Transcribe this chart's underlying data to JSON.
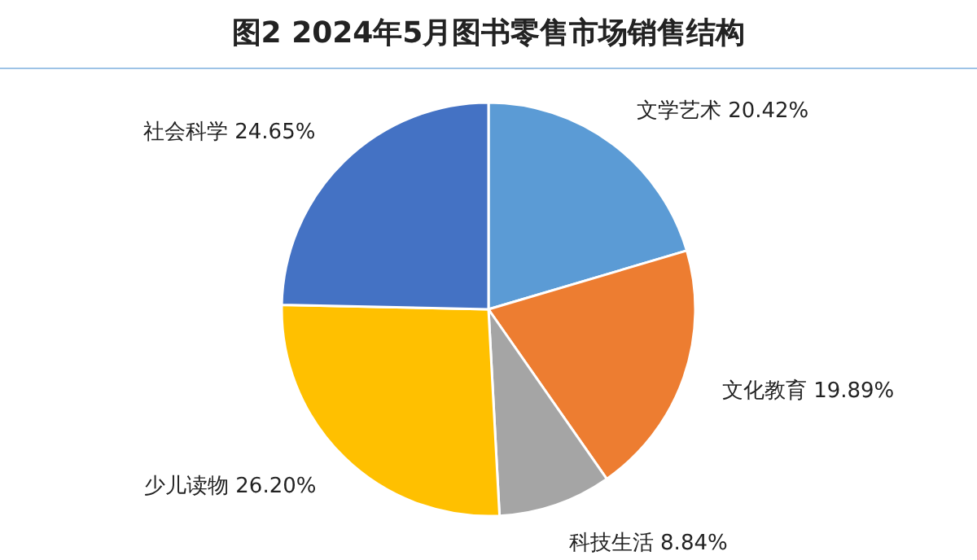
{
  "chart_data": {
    "type": "pie",
    "title": "图2  2024年5月图书零售市场销售结构",
    "categories": [
      "文学艺术",
      "文化教育",
      "科技生活",
      "少儿读物",
      "社会科学"
    ],
    "values": [
      20.42,
      19.89,
      8.84,
      26.2,
      24.65
    ],
    "value_labels": [
      "20.42%",
      "19.89%",
      "8.84%",
      "26.20%",
      "24.65%"
    ],
    "colors": [
      "#5b9bd5",
      "#ed7d31",
      "#a5a5a5",
      "#ffc000",
      "#4472c4"
    ]
  }
}
